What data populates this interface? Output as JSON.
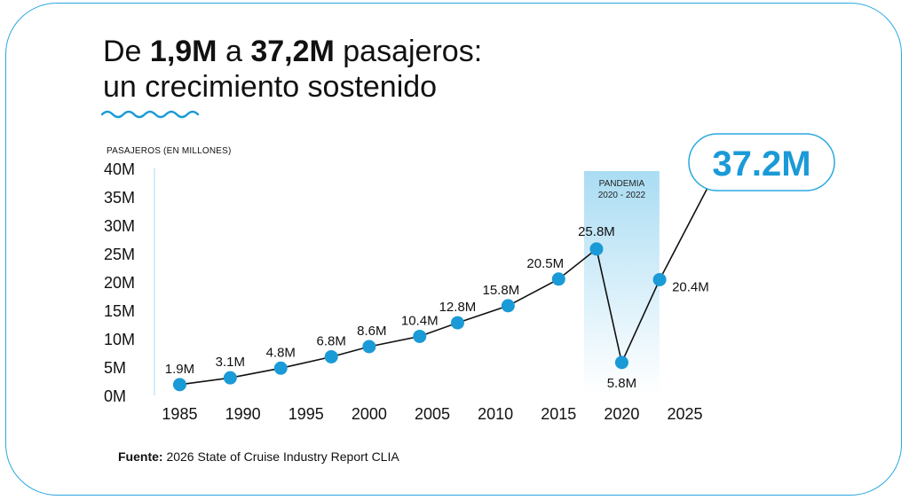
{
  "title": {
    "line1_pre": "De ",
    "line1_b1": "1,9M",
    "line1_mid": " a ",
    "line1_b2": "37,2M",
    "line1_post": " pasajeros:",
    "line2": "un crecimiento sostenido"
  },
  "source": {
    "label": "Fuente:",
    "text": " 2026 State of Cruise Industry Report CLIA"
  },
  "colors": {
    "accent": "#1a9ad6",
    "frame": "#29a8e0",
    "band_top": "#a9dcf3",
    "line": "#111111"
  },
  "chart_data": {
    "type": "line",
    "ylabel": "PASAJEROS (EN MILLONES)",
    "ylim": [
      0,
      40
    ],
    "xlim": [
      1983,
      2027
    ],
    "x_ticks": [
      1985,
      1990,
      1995,
      2000,
      2005,
      2010,
      2015,
      2020,
      2025
    ],
    "x_tick_labels": [
      "1985",
      "1990",
      "1995",
      "2000",
      "2005",
      "2010",
      "2015",
      "2020",
      "2025"
    ],
    "y_ticks": [
      0,
      5,
      10,
      15,
      20,
      25,
      30,
      35,
      40
    ],
    "y_tick_labels": [
      "0M",
      "5M",
      "10M",
      "15M",
      "20M",
      "25M",
      "30M",
      "35M",
      "40M"
    ],
    "series": [
      {
        "points": [
          {
            "x": 1985,
            "y": 1.9,
            "label": "1.9M"
          },
          {
            "x": 1989,
            "y": 3.1,
            "label": "3.1M"
          },
          {
            "x": 1993,
            "y": 4.8,
            "label": "4.8M"
          },
          {
            "x": 1997,
            "y": 6.8,
            "label": "6.8M"
          },
          {
            "x": 2000,
            "y": 8.6,
            "label": "8.6M"
          },
          {
            "x": 2004,
            "y": 10.4,
            "label": "10.4M"
          },
          {
            "x": 2007,
            "y": 12.8,
            "label": "12.8M"
          },
          {
            "x": 2011,
            "y": 15.8,
            "label": "15.8M"
          },
          {
            "x": 2015,
            "y": 20.5,
            "label": "20.5M"
          },
          {
            "x": 2018,
            "y": 25.8,
            "label": "25.8M"
          },
          {
            "x": 2020,
            "y": 5.8,
            "label": "5.8M"
          },
          {
            "x": 2023,
            "y": 20.4,
            "label": "20.4M"
          }
        ],
        "projection": {
          "x": 2026,
          "y": 37.2,
          "label": "37.2M"
        }
      }
    ],
    "annotation_band": {
      "x_start": 2018,
      "x_end": 2022,
      "label_line1": "PANDEMIA",
      "label_line2": "2020 - 2022"
    }
  }
}
